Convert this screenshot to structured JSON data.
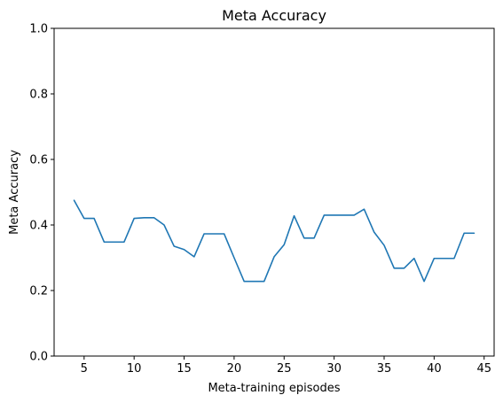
{
  "chart_data": {
    "type": "line",
    "title": "Meta Accuracy",
    "xlabel": "Meta-training episodes",
    "ylabel": "Meta Accuracy",
    "xlim": [
      2.0,
      46.0
    ],
    "ylim": [
      0.0,
      1.0
    ],
    "x_ticks": [
      5,
      10,
      15,
      20,
      25,
      30,
      35,
      40,
      45
    ],
    "x_tick_labels": [
      "5",
      "10",
      "15",
      "20",
      "25",
      "30",
      "35",
      "40",
      "45"
    ],
    "y_ticks": [
      0.0,
      0.2,
      0.4,
      0.6,
      0.8,
      1.0
    ],
    "y_tick_labels": [
      "0.0",
      "0.2",
      "0.4",
      "0.6",
      "0.8",
      "1.0"
    ],
    "grid": false,
    "series": [
      {
        "color": "#1f77b4",
        "x": [
          4,
          5,
          6,
          7,
          8,
          9,
          10,
          11,
          12,
          13,
          14,
          15,
          16,
          17,
          18,
          19,
          20,
          21,
          22,
          23,
          24,
          25,
          26,
          27,
          28,
          29,
          30,
          31,
          32,
          33,
          34,
          35,
          36,
          37,
          38,
          39,
          40,
          41,
          42,
          43,
          44
        ],
        "values": [
          0.475,
          0.42,
          0.42,
          0.348,
          0.348,
          0.348,
          0.42,
          0.422,
          0.422,
          0.4,
          0.335,
          0.325,
          0.303,
          0.373,
          0.373,
          0.373,
          0.3,
          0.228,
          0.228,
          0.228,
          0.303,
          0.34,
          0.428,
          0.36,
          0.36,
          0.43,
          0.43,
          0.43,
          0.43,
          0.448,
          0.378,
          0.338,
          0.268,
          0.268,
          0.298,
          0.228,
          0.298,
          0.298,
          0.298,
          0.375,
          0.375
        ]
      }
    ]
  }
}
